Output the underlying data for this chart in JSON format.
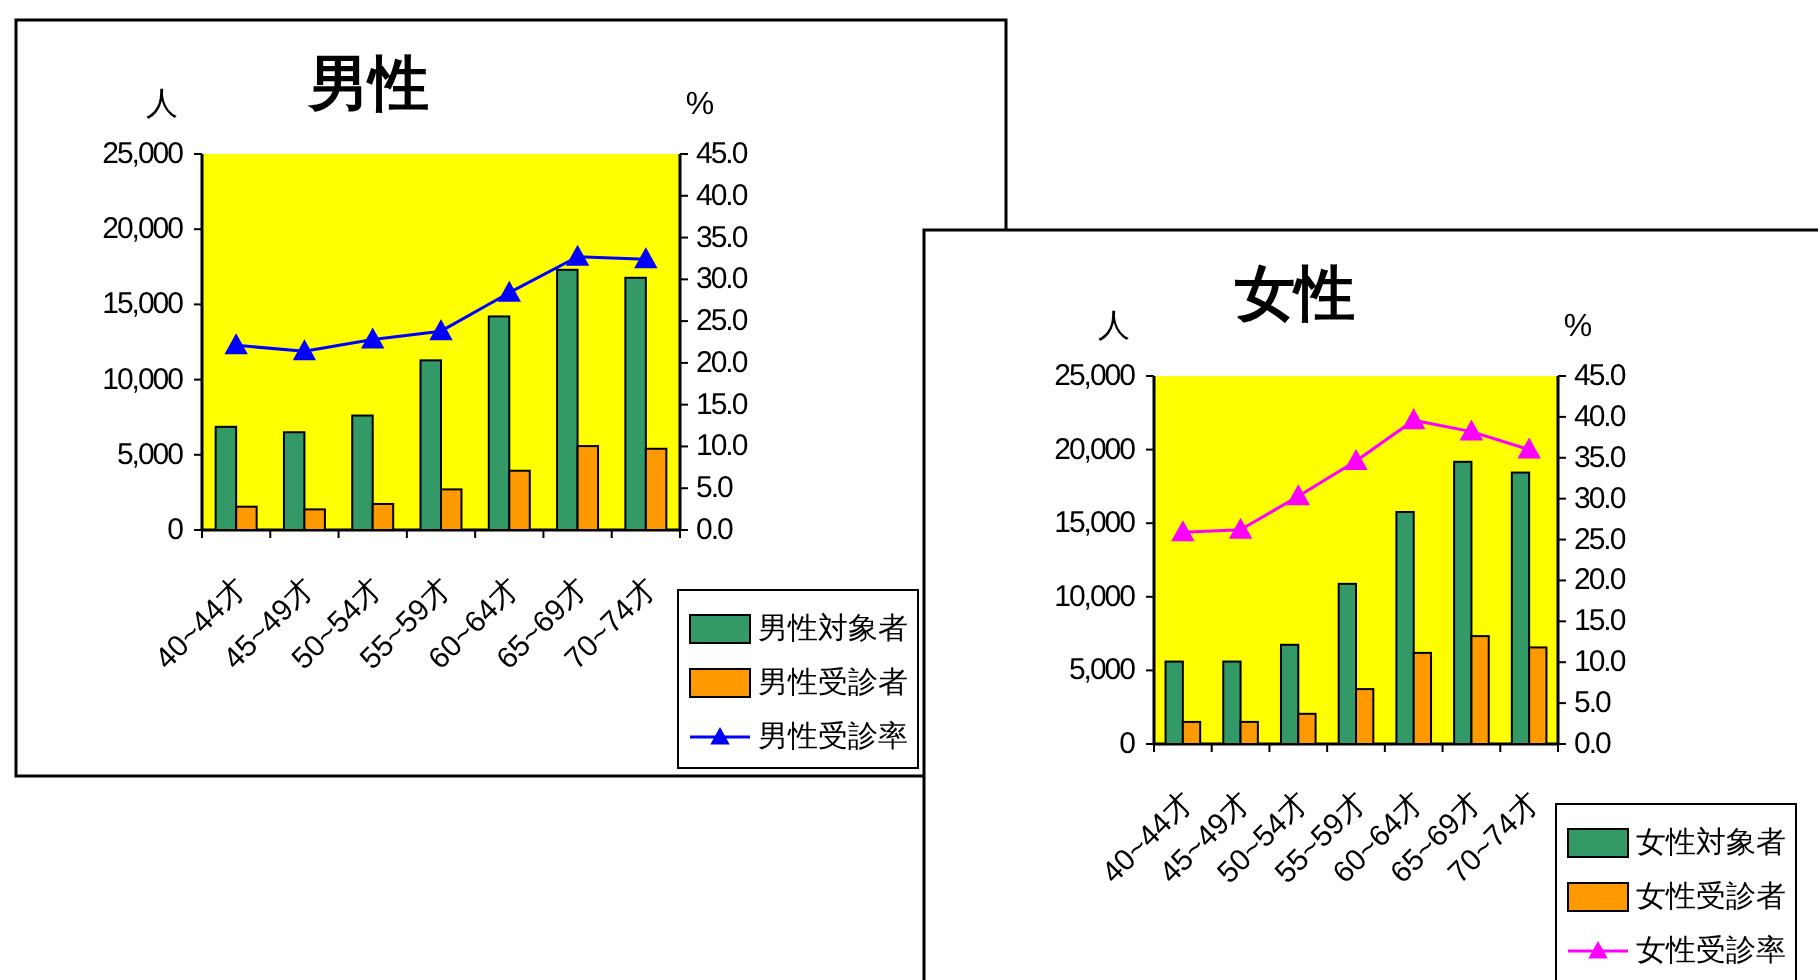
{
  "chart_data": [
    {
      "type": "bar",
      "title": "男性",
      "ylabel": "人",
      "y2label": "%",
      "categories": [
        "40~44才",
        "45~49才",
        "50~54才",
        "55~59才",
        "60~64才",
        "65~69才",
        "70~74才"
      ],
      "series": [
        {
          "name": "男性対象者",
          "color": "#339966",
          "values": [
            6860,
            6500,
            7610,
            11280,
            14200,
            17300,
            16770
          ]
        },
        {
          "name": "男性受診者",
          "color": "#ff9900",
          "values": [
            1550,
            1370,
            1730,
            2700,
            3940,
            5580,
            5400
          ]
        },
        {
          "name": "男性受診率",
          "color": "#0000ff",
          "type": "line",
          "axis": "y2",
          "values": [
            22.1,
            21.4,
            22.8,
            23.8,
            28.4,
            32.7,
            32.4
          ]
        }
      ],
      "ylim": [
        0,
        25000
      ],
      "yticks": [
        {
          "value": 0,
          "label": "0"
        },
        {
          "value": 5000,
          "label": "5,000"
        },
        {
          "value": 10000,
          "label": "10,000"
        },
        {
          "value": 15000,
          "label": "15,000"
        },
        {
          "value": 20000,
          "label": "20,000"
        },
        {
          "value": 25000,
          "label": "25,000"
        }
      ],
      "y2lim": [
        0,
        45
      ],
      "y2ticks": [
        {
          "value": 0,
          "label": "0.0"
        },
        {
          "value": 5,
          "label": "5.0"
        },
        {
          "value": 10,
          "label": "10.0"
        },
        {
          "value": 15,
          "label": "15.0"
        },
        {
          "value": 20,
          "label": "20.0"
        },
        {
          "value": 25,
          "label": "25.0"
        },
        {
          "value": 30,
          "label": "30.0"
        },
        {
          "value": 35,
          "label": "35.0"
        },
        {
          "value": 40,
          "label": "40.0"
        },
        {
          "value": 45,
          "label": "45.0"
        }
      ],
      "marker": "triangle",
      "legend": "bottom right"
    },
    {
      "type": "bar",
      "title": "女性",
      "ylabel": "人",
      "y2label": "%",
      "categories": [
        "40~44才",
        "45~49才",
        "50~54才",
        "55~59才",
        "60~64才",
        "65~69才",
        "70~74才"
      ],
      "series": [
        {
          "name": "女性対象者",
          "color": "#339966",
          "values": [
            5600,
            5600,
            6740,
            10880,
            15760,
            19170,
            18440
          ]
        },
        {
          "name": "女性受診者",
          "color": "#ff9900",
          "values": [
            1500,
            1500,
            2050,
            3730,
            6190,
            7330,
            6560
          ]
        },
        {
          "name": "女性受診率",
          "color": "#ff00ff",
          "type": "line",
          "axis": "y2",
          "values": [
            25.9,
            26.2,
            30.3,
            34.6,
            39.6,
            38.2,
            36.0
          ]
        }
      ],
      "ylim": [
        0,
        25000
      ],
      "yticks": [
        {
          "value": 0,
          "label": "0"
        },
        {
          "value": 5000,
          "label": "5,000"
        },
        {
          "value": 10000,
          "label": "10,000"
        },
        {
          "value": 15000,
          "label": "15,000"
        },
        {
          "value": 20000,
          "label": "20,000"
        },
        {
          "value": 25000,
          "label": "25,000"
        }
      ],
      "y2lim": [
        0,
        45
      ],
      "y2ticks": [
        {
          "value": 0,
          "label": "0.0"
        },
        {
          "value": 5,
          "label": "5.0"
        },
        {
          "value": 10,
          "label": "10.0"
        },
        {
          "value": 15,
          "label": "15.0"
        },
        {
          "value": 20,
          "label": "20.0"
        },
        {
          "value": 25,
          "label": "25.0"
        },
        {
          "value": 30,
          "label": "30.0"
        },
        {
          "value": 35,
          "label": "35.0"
        },
        {
          "value": 40,
          "label": "40.0"
        },
        {
          "value": 45,
          "label": "45.0"
        }
      ],
      "marker": "triangle",
      "legend": "bottom right"
    }
  ]
}
